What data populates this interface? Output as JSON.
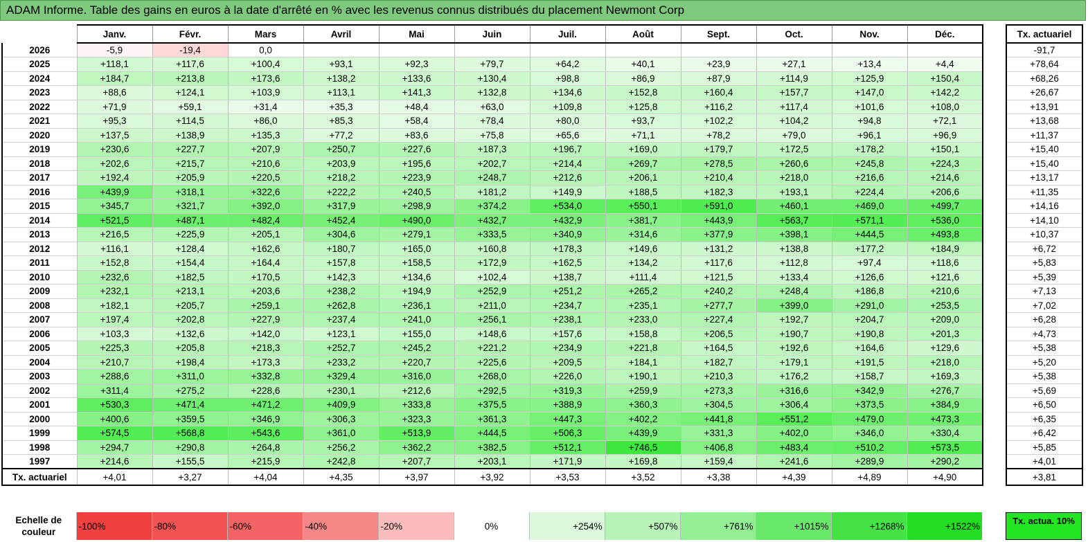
{
  "title": "ADAM Informe. Table des gains en euros à la date d'arrêté en % avec les revenus connus distribués du placement Newmont Corp",
  "chart_data": {
    "type": "table",
    "months": [
      "Janv.",
      "Févr.",
      "Mars",
      "Avril",
      "Mai",
      "Juin",
      "Juil.",
      "Août",
      "Sept.",
      "Oct.",
      "Nov.",
      "Déc."
    ],
    "side_header": "Tx. actuariel",
    "rows": [
      {
        "year": "2026",
        "values": [
          "-5,9",
          "-19,4",
          "0,0",
          "",
          "",
          "",
          "",
          "",
          "",
          "",
          "",
          ""
        ],
        "rate": "-91,7"
      },
      {
        "year": "2025",
        "values": [
          "+118,1",
          "+117,6",
          "+100,4",
          "+93,1",
          "+92,3",
          "+79,7",
          "+64,2",
          "+40,1",
          "+23,9",
          "+27,1",
          "+13,4",
          "+4,4"
        ],
        "rate": "+78,64"
      },
      {
        "year": "2024",
        "values": [
          "+184,7",
          "+213,8",
          "+173,6",
          "+138,2",
          "+133,6",
          "+130,4",
          "+98,8",
          "+86,9",
          "+87,9",
          "+114,9",
          "+125,9",
          "+150,4"
        ],
        "rate": "+68,26"
      },
      {
        "year": "2023",
        "values": [
          "+88,6",
          "+124,1",
          "+103,9",
          "+113,1",
          "+141,3",
          "+132,8",
          "+134,6",
          "+152,8",
          "+160,4",
          "+157,7",
          "+147,0",
          "+142,2"
        ],
        "rate": "+26,67"
      },
      {
        "year": "2022",
        "values": [
          "+71,9",
          "+59,1",
          "+31,4",
          "+35,3",
          "+48,4",
          "+63,0",
          "+109,8",
          "+125,8",
          "+116,2",
          "+117,4",
          "+101,6",
          "+108,0"
        ],
        "rate": "+13,91"
      },
      {
        "year": "2021",
        "values": [
          "+95,3",
          "+114,5",
          "+86,0",
          "+85,3",
          "+58,4",
          "+78,4",
          "+80,0",
          "+93,7",
          "+102,2",
          "+104,2",
          "+94,8",
          "+72,1"
        ],
        "rate": "+13,68"
      },
      {
        "year": "2020",
        "values": [
          "+137,5",
          "+138,9",
          "+135,3",
          "+77,2",
          "+83,6",
          "+75,8",
          "+65,6",
          "+71,1",
          "+78,2",
          "+79,0",
          "+96,1",
          "+96,9"
        ],
        "rate": "+11,37"
      },
      {
        "year": "2019",
        "values": [
          "+230,6",
          "+227,7",
          "+207,9",
          "+250,7",
          "+227,6",
          "+187,3",
          "+196,7",
          "+169,0",
          "+179,7",
          "+172,5",
          "+178,2",
          "+150,1"
        ],
        "rate": "+15,40"
      },
      {
        "year": "2018",
        "values": [
          "+202,6",
          "+215,7",
          "+210,6",
          "+203,9",
          "+195,6",
          "+202,7",
          "+214,4",
          "+269,7",
          "+278,5",
          "+260,6",
          "+245,8",
          "+224,3"
        ],
        "rate": "+15,40"
      },
      {
        "year": "2017",
        "values": [
          "+192,4",
          "+205,9",
          "+220,5",
          "+218,2",
          "+223,9",
          "+248,7",
          "+212,6",
          "+206,1",
          "+210,4",
          "+218,0",
          "+216,6",
          "+214,6"
        ],
        "rate": "+13,17"
      },
      {
        "year": "2016",
        "values": [
          "+439,9",
          "+318,1",
          "+322,6",
          "+222,2",
          "+240,5",
          "+181,2",
          "+149,9",
          "+188,5",
          "+182,3",
          "+193,1",
          "+224,4",
          "+206,6"
        ],
        "rate": "+11,35"
      },
      {
        "year": "2015",
        "values": [
          "+345,7",
          "+321,7",
          "+392,0",
          "+317,9",
          "+298,9",
          "+374,2",
          "+534,0",
          "+550,1",
          "+591,0",
          "+460,1",
          "+469,0",
          "+499,7"
        ],
        "rate": "+14,16"
      },
      {
        "year": "2014",
        "values": [
          "+521,5",
          "+487,1",
          "+482,4",
          "+452,4",
          "+490,0",
          "+432,7",
          "+432,9",
          "+381,7",
          "+443,9",
          "+563,7",
          "+571,1",
          "+536,0"
        ],
        "rate": "+14,10"
      },
      {
        "year": "2013",
        "values": [
          "+216,5",
          "+225,9",
          "+205,1",
          "+304,6",
          "+279,1",
          "+333,5",
          "+340,9",
          "+314,6",
          "+377,9",
          "+398,1",
          "+444,5",
          "+493,8"
        ],
        "rate": "+10,37"
      },
      {
        "year": "2012",
        "values": [
          "+116,1",
          "+128,4",
          "+162,6",
          "+180,7",
          "+165,0",
          "+160,8",
          "+178,3",
          "+149,6",
          "+131,2",
          "+138,8",
          "+177,2",
          "+184,9"
        ],
        "rate": "+6,72"
      },
      {
        "year": "2011",
        "values": [
          "+152,8",
          "+154,4",
          "+164,4",
          "+157,8",
          "+158,5",
          "+172,9",
          "+162,5",
          "+134,2",
          "+117,6",
          "+112,8",
          "+97,4",
          "+118,6"
        ],
        "rate": "+5,83"
      },
      {
        "year": "2010",
        "values": [
          "+232,6",
          "+182,5",
          "+170,5",
          "+142,3",
          "+134,6",
          "+102,4",
          "+138,7",
          "+111,4",
          "+121,5",
          "+133,4",
          "+126,6",
          "+121,6"
        ],
        "rate": "+5,39"
      },
      {
        "year": "2009",
        "values": [
          "+232,1",
          "+213,1",
          "+203,6",
          "+238,2",
          "+194,9",
          "+252,9",
          "+251,2",
          "+265,2",
          "+240,2",
          "+248,4",
          "+186,8",
          "+210,6"
        ],
        "rate": "+7,13"
      },
      {
        "year": "2008",
        "values": [
          "+182,1",
          "+205,7",
          "+259,1",
          "+262,8",
          "+236,1",
          "+211,0",
          "+234,7",
          "+235,1",
          "+277,7",
          "+399,0",
          "+291,0",
          "+253,5"
        ],
        "rate": "+7,02"
      },
      {
        "year": "2007",
        "values": [
          "+197,4",
          "+202,8",
          "+227,9",
          "+237,4",
          "+241,0",
          "+256,1",
          "+238,1",
          "+233,0",
          "+227,4",
          "+192,7",
          "+204,7",
          "+209,0"
        ],
        "rate": "+6,28"
      },
      {
        "year": "2006",
        "values": [
          "+103,3",
          "+132,6",
          "+142,0",
          "+123,1",
          "+155,0",
          "+148,6",
          "+157,6",
          "+158,8",
          "+206,5",
          "+190,7",
          "+190,8",
          "+201,3"
        ],
        "rate": "+4,73"
      },
      {
        "year": "2005",
        "values": [
          "+225,3",
          "+205,8",
          "+218,3",
          "+252,7",
          "+245,2",
          "+221,2",
          "+234,9",
          "+221,8",
          "+164,5",
          "+192,6",
          "+164,6",
          "+129,6"
        ],
        "rate": "+5,38"
      },
      {
        "year": "2004",
        "values": [
          "+210,7",
          "+198,4",
          "+173,3",
          "+233,2",
          "+220,7",
          "+225,6",
          "+209,5",
          "+184,1",
          "+182,7",
          "+179,1",
          "+191,5",
          "+218,0"
        ],
        "rate": "+5,20"
      },
      {
        "year": "2003",
        "values": [
          "+288,6",
          "+311,0",
          "+332,8",
          "+329,4",
          "+316,0",
          "+268,0",
          "+226,0",
          "+190,1",
          "+210,3",
          "+176,2",
          "+158,7",
          "+169,3"
        ],
        "rate": "+5,38"
      },
      {
        "year": "2002",
        "values": [
          "+311,4",
          "+275,2",
          "+228,6",
          "+230,1",
          "+212,6",
          "+292,5",
          "+319,3",
          "+259,9",
          "+273,3",
          "+316,6",
          "+342,9",
          "+276,7"
        ],
        "rate": "+5,69"
      },
      {
        "year": "2001",
        "values": [
          "+530,3",
          "+471,4",
          "+471,2",
          "+409,9",
          "+333,8",
          "+375,5",
          "+388,9",
          "+360,3",
          "+304,5",
          "+306,4",
          "+373,5",
          "+384,9"
        ],
        "rate": "+6,50"
      },
      {
        "year": "2000",
        "values": [
          "+400,6",
          "+359,5",
          "+346,9",
          "+306,3",
          "+323,3",
          "+361,3",
          "+447,3",
          "+402,2",
          "+441,8",
          "+551,2",
          "+479,0",
          "+473,3"
        ],
        "rate": "+6,35"
      },
      {
        "year": "1999",
        "values": [
          "+574,5",
          "+568,8",
          "+543,6",
          "+361,0",
          "+513,9",
          "+444,5",
          "+506,3",
          "+439,9",
          "+331,3",
          "+402,0",
          "+346,0",
          "+330,4"
        ],
        "rate": "+6,42"
      },
      {
        "year": "1998",
        "values": [
          "+294,7",
          "+290,8",
          "+264,8",
          "+256,2",
          "+362,2",
          "+382,5",
          "+512,1",
          "+746,5",
          "+406,8",
          "+483,4",
          "+510,2",
          "+573,5"
        ],
        "rate": "+5,85"
      },
      {
        "year": "1997",
        "values": [
          "+214,6",
          "+155,5",
          "+215,9",
          "+242,8",
          "+207,7",
          "+203,1",
          "+171,9",
          "+169,8",
          "+159,4",
          "+241,6",
          "+289,9",
          "+290,2"
        ],
        "rate": "+4,01"
      }
    ],
    "totals": {
      "label": "Tx. actuariel",
      "values": [
        "+4,01",
        "+3,27",
        "+4,04",
        "+4,35",
        "+3,97",
        "+3,92",
        "+3,53",
        "+3,52",
        "+3,38",
        "+4,39",
        "+4,89",
        "+4,90"
      ],
      "rate": "+3,81"
    },
    "legend": {
      "label": "Echelle de couleur",
      "items": [
        {
          "text": "-100%",
          "color": "#f04040"
        },
        {
          "text": "-80%",
          "color": "#f25252"
        },
        {
          "text": "-60%",
          "color": "#f46464"
        },
        {
          "text": "-40%",
          "color": "#f78686"
        },
        {
          "text": "-20%",
          "color": "#fbbcbc"
        },
        {
          "text": "0%",
          "color": "#ffffff"
        },
        {
          "text": "+254%",
          "color": "#dcf9dc"
        },
        {
          "text": "+507%",
          "color": "#b8f3b8"
        },
        {
          "text": "+761%",
          "color": "#92ee92"
        },
        {
          "text": "+1015%",
          "color": "#6ae86a"
        },
        {
          "text": "+1268%",
          "color": "#44e244"
        },
        {
          "text": "+1522%",
          "color": "#22dd22"
        }
      ],
      "side": "Tx. actua. 10%",
      "side_color": "#22e622"
    }
  }
}
